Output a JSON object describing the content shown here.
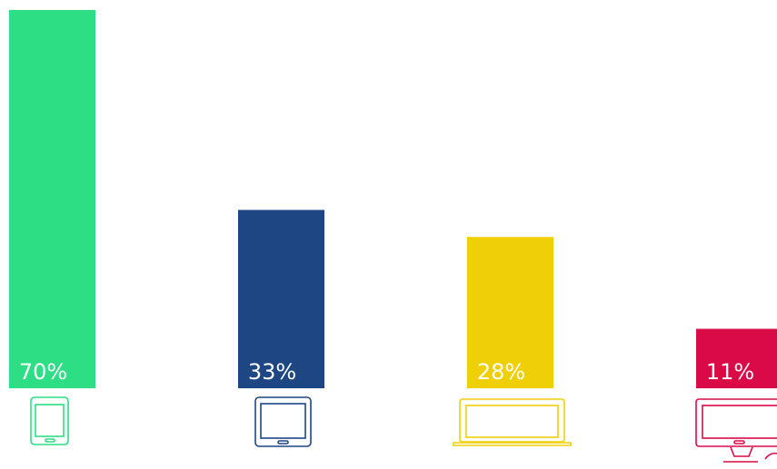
{
  "chart_data": {
    "type": "bar",
    "categories": [
      "smartphone",
      "tablet",
      "laptop",
      "desktop"
    ],
    "values": [
      70,
      33,
      28,
      11
    ],
    "value_labels": [
      "70%",
      "33%",
      "28%",
      "11%"
    ],
    "colors": [
      "#2ede84",
      "#1d4682",
      "#efcf07",
      "#da0a46"
    ],
    "icons": [
      "smartphone-icon",
      "tablet-icon",
      "laptop-icon",
      "desktop-monitor-icon"
    ],
    "ylim": [
      0,
      70
    ],
    "grid": false,
    "legend": "none"
  }
}
